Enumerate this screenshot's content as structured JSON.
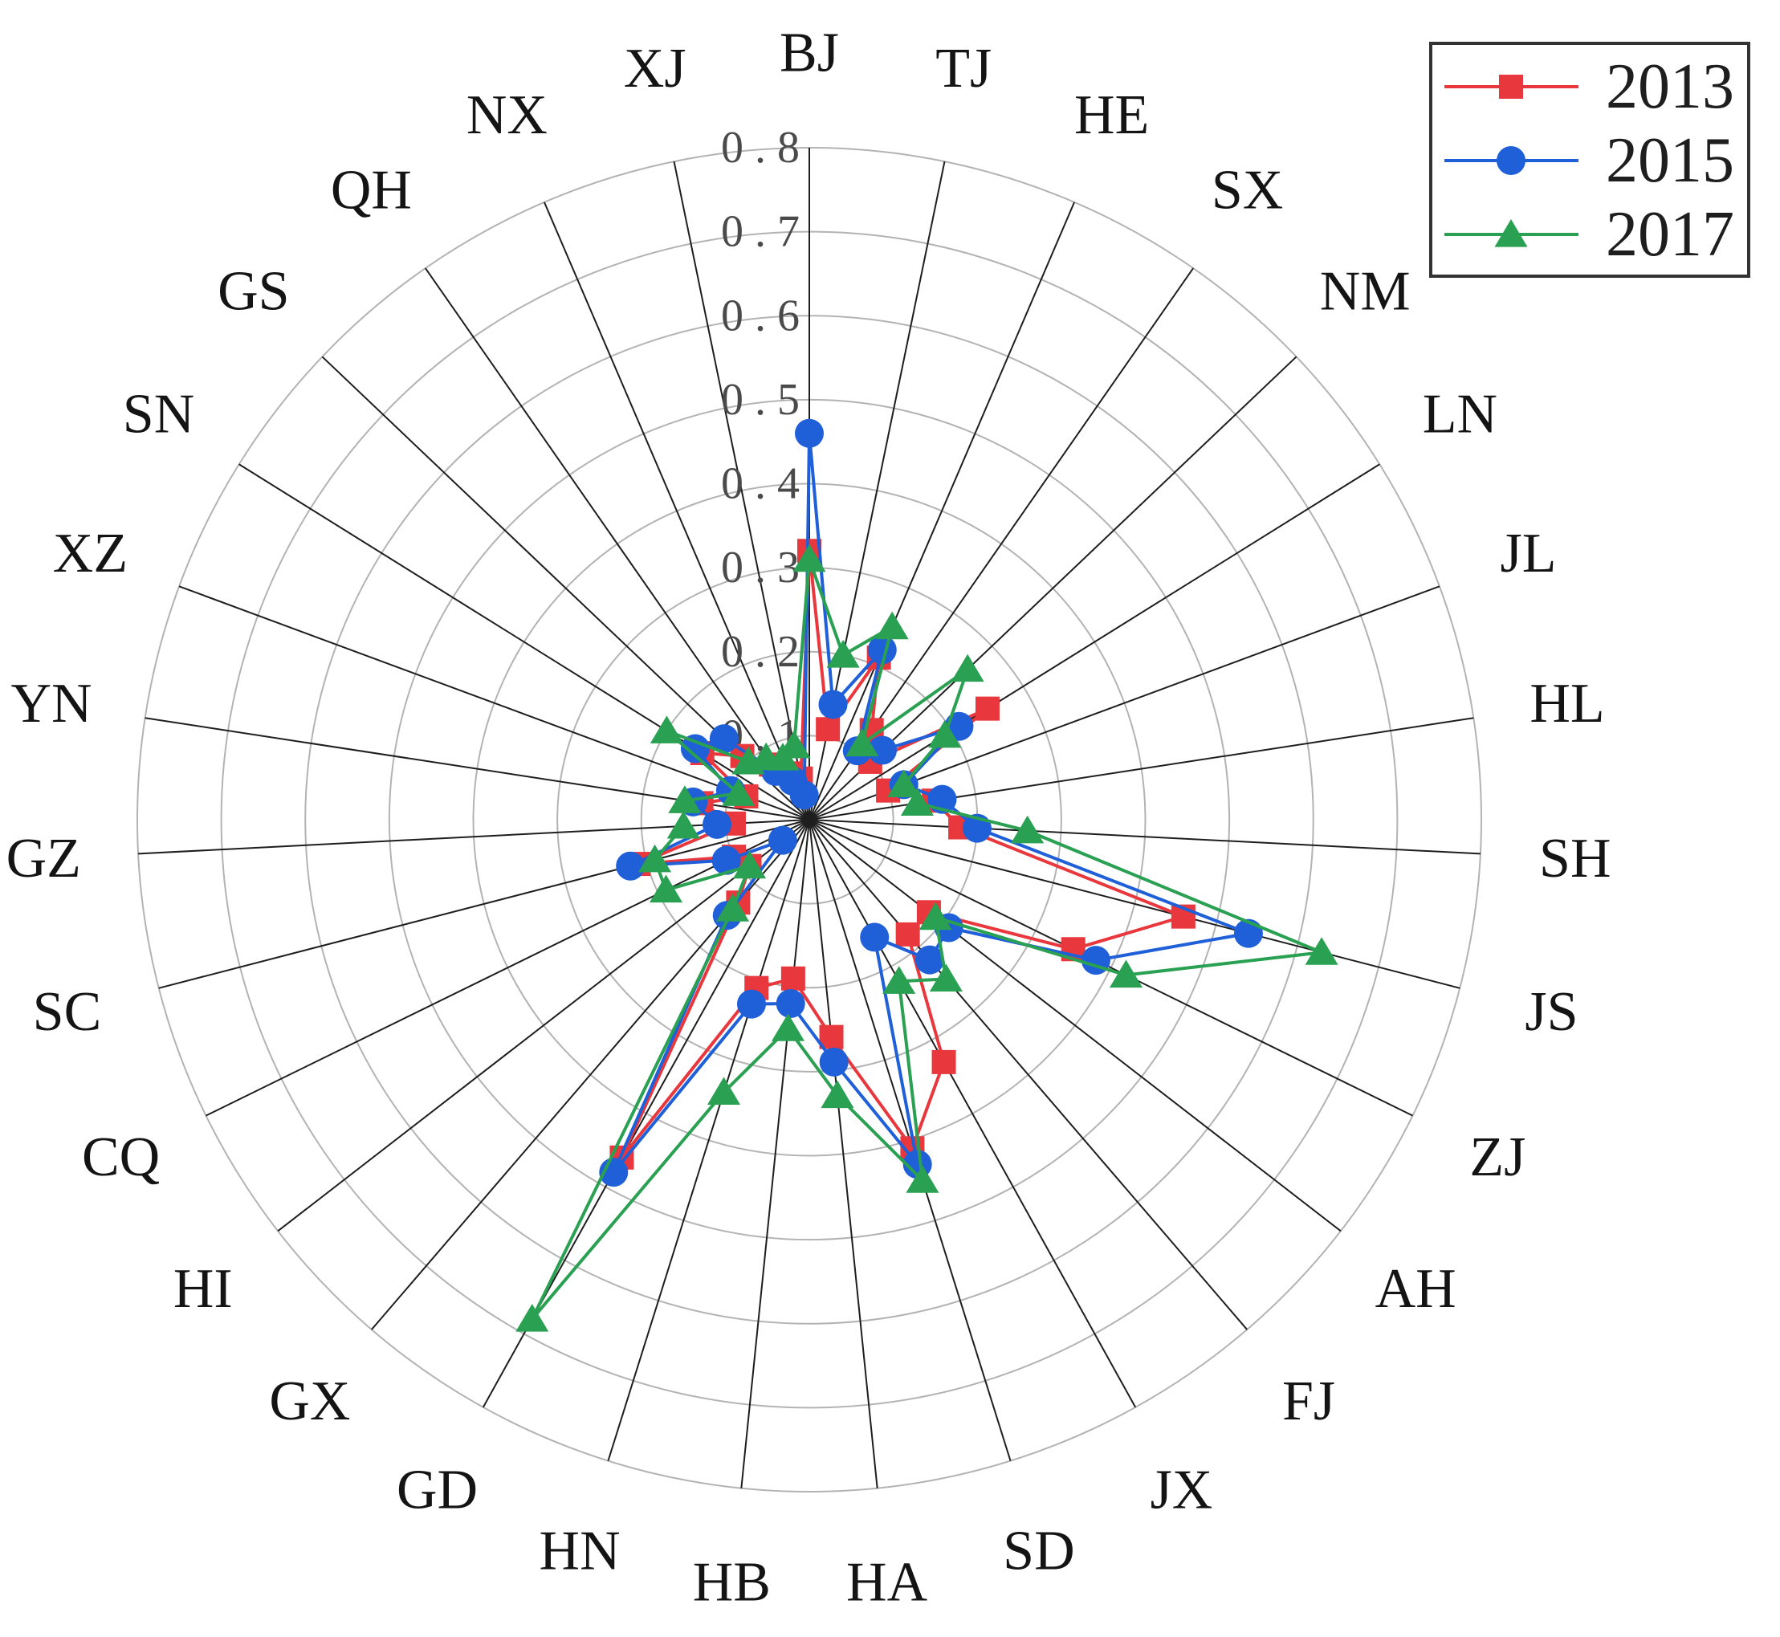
{
  "chart_data": {
    "type": "radar",
    "categories": [
      "BJ",
      "TJ",
      "HE",
      "SX",
      "NM",
      "LN",
      "JL",
      "HL",
      "SH",
      "JS",
      "ZJ",
      "AH",
      "FJ",
      "JX",
      "SD",
      "HA",
      "HB",
      "HN",
      "GD",
      "GX",
      "HI",
      "CQ",
      "SC",
      "GZ",
      "YN",
      "XZ",
      "SN",
      "GS",
      "QH",
      "NX",
      "XJ"
    ],
    "series": [
      {
        "name": "2013",
        "color": "#e8383d",
        "marker": "square",
        "values": [
          0.32,
          0.11,
          0.21,
          0.13,
          0.1,
          0.25,
          0.1,
          0.15,
          0.18,
          0.46,
          0.35,
          0.18,
          0.18,
          0.33,
          0.41,
          0.26,
          0.19,
          0.21,
          0.46,
          0.13,
          0.09,
          0.1,
          0.21,
          0.09,
          0.13,
          0.08,
          0.15,
          0.11,
          0.08,
          0.06,
          0.05
        ]
      },
      {
        "name": "2015",
        "color": "#1f5fd8",
        "marker": "circle",
        "values": [
          0.46,
          0.14,
          0.22,
          0.1,
          0.12,
          0.21,
          0.12,
          0.16,
          0.2,
          0.54,
          0.38,
          0.21,
          0.22,
          0.16,
          0.43,
          0.29,
          0.22,
          0.23,
          0.48,
          0.15,
          0.04,
          0.11,
          0.22,
          0.11,
          0.14,
          0.1,
          0.16,
          0.14,
          0.07,
          0.05,
          0.03
        ]
      },
      {
        "name": "2017",
        "color": "#2aa052",
        "marker": "triangle",
        "values": [
          0.31,
          0.2,
          0.25,
          0.11,
          0.26,
          0.19,
          0.12,
          0.13,
          0.26,
          0.63,
          0.42,
          0.19,
          0.25,
          0.22,
          0.45,
          0.33,
          0.25,
          0.34,
          0.68,
          0.14,
          0.09,
          0.19,
          0.19,
          0.15,
          0.15,
          0.09,
          0.2,
          0.1,
          0.09,
          0.08,
          0.09
        ]
      }
    ],
    "rlim": [
      0,
      0.8
    ],
    "r_ticks": [
      0.1,
      0.2,
      0.3,
      0.4,
      0.5,
      0.6,
      0.7,
      0.8
    ],
    "r_tick_labels": [
      "0.1",
      "0.2",
      "0.3",
      "0.4",
      "0.5",
      "0.6",
      "0.7",
      "0.8"
    ],
    "grid": true,
    "legend_position": "top-right"
  }
}
